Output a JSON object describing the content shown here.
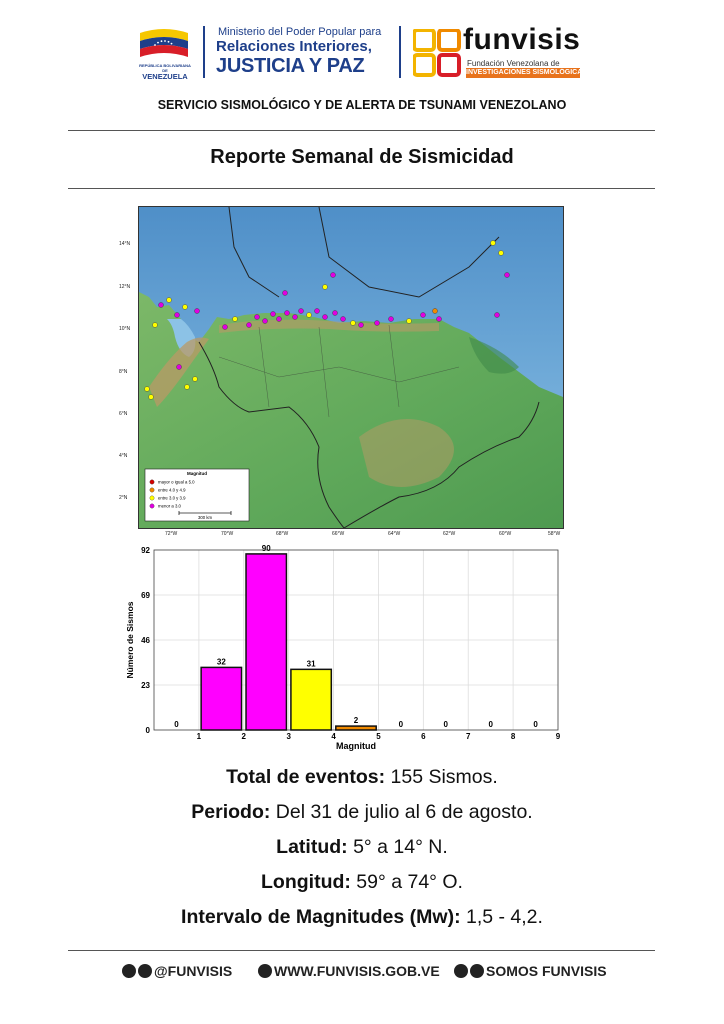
{
  "header": {
    "gov_small": "REPÚBLICA BOLIVARIANA DE",
    "gov_name": "VENEZUELA",
    "ministry_line1": "Ministerio del Poder Popular para",
    "ministry_line2": "Relaciones Interiores,",
    "ministry_line3": "JUSTICIA Y PAZ",
    "org_name": "funvisis",
    "org_sub1": "Fundación Venezolana de",
    "org_sub2": "INVESTIGACIONES SISMOLÓGICAS"
  },
  "service": "SERVICIO SISMOLÓGICO Y DE ALERTA DE TSUNAMI VENEZOLANO",
  "title": "Reporte Semanal de Sismicidad",
  "map": {
    "lat_labels": [
      "14°N",
      "12°N",
      "10°N",
      "8°N",
      "6°N",
      "4°N",
      "2°N"
    ],
    "lon_labels": [
      "72°W",
      "70°W",
      "68°W",
      "66°W",
      "64°W",
      "62°W",
      "60°W",
      "58°W"
    ],
    "legend": {
      "title": "Magnitud",
      "items": [
        {
          "label": "mayor o igual a 5.0",
          "color": "#d40000"
        },
        {
          "label": "entre 4.0 y 4.9",
          "color": "#f08a00"
        },
        {
          "label": "entre 3.0 y 3.9",
          "color": "#ffff00"
        },
        {
          "label": "menor a 3.0",
          "color": "#e000e0"
        }
      ],
      "scale": "300 km"
    },
    "colors": {
      "sea": "#6fa9d8",
      "land": "#5fa85a",
      "mountain": "#b99a66",
      "boundary": "#222222"
    }
  },
  "chart_data": {
    "type": "bar",
    "x": [
      0.5,
      1.5,
      2.5,
      3.5,
      4.5,
      5.5,
      6.5,
      7.5,
      8.5
    ],
    "values": [
      0,
      32,
      90,
      31,
      2,
      0,
      0,
      0,
      0
    ],
    "colors": [
      "#ff00ff",
      "#ff00ff",
      "#ff00ff",
      "#ffff00",
      "#f08a00",
      "#d40000",
      "#d40000",
      "#d40000",
      "#d40000"
    ],
    "xticks": [
      1,
      2,
      3,
      4,
      5,
      6,
      7,
      8,
      9
    ],
    "yticks": [
      0,
      23,
      46,
      69,
      92
    ],
    "xlim": [
      0,
      9
    ],
    "ylim": [
      0,
      92
    ],
    "xlabel": "Magnitud",
    "ylabel": "Número de Sismos",
    "grid": true
  },
  "summary": {
    "total_label": "Total de eventos:",
    "total_value": " 155 Sismos.",
    "period_label": "Periodo:",
    "period_value": " Del 31 de julio al 6 de agosto.",
    "lat_label": "Latitud:",
    "lat_value": " 5° a 14° N.",
    "lon_label": "Longitud:",
    "lon_value": " 59° a 74° O.",
    "mag_label": "Intervalo de Magnitudes (Mw):",
    "mag_value": " 1,5 - 4,2."
  },
  "footer": {
    "social_handle": "@FUNVISIS",
    "website": "WWW.FUNVISIS.GOB.VE",
    "social_name": "SOMOS FUNVISIS"
  }
}
